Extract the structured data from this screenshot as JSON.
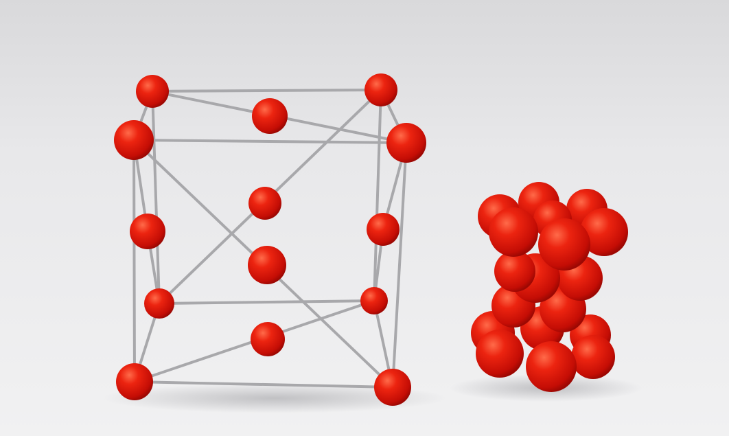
{
  "photo": {
    "subject": "crystal-lattice-models",
    "background_color": "#ebebed",
    "sphere_color": "#e3120b",
    "rod_color": "#a9a9a9",
    "models": [
      {
        "name": "ball-and-stick-unit-cell"
      },
      {
        "name": "space-filling-model"
      }
    ]
  }
}
